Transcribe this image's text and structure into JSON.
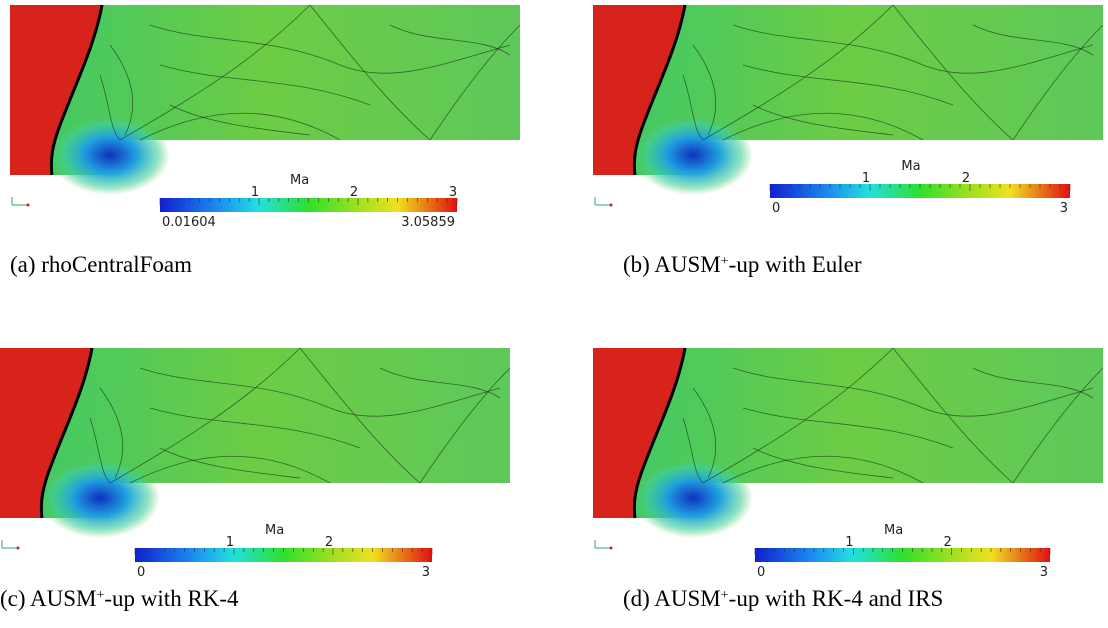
{
  "panels": [
    {
      "caption": {
        "prefix": "(a) rhoCentralFoam"
      },
      "colorbar": {
        "title": "Ma",
        "ticks": [
          "1",
          "2",
          "3"
        ],
        "min": "0.01604",
        "max": "3.05859"
      }
    },
    {
      "caption": {
        "prefix": "(b) AUSM",
        "sup": "+",
        "suffix": "-up with Euler"
      },
      "colorbar": {
        "title": "Ma",
        "ticks": [
          "1",
          "2"
        ],
        "min": "0",
        "max": "3"
      }
    },
    {
      "caption": {
        "prefix": "(c) AUSM",
        "sup": "+",
        "suffix": "-up with RK-4"
      },
      "colorbar": {
        "title": "Ma",
        "ticks": [
          "1",
          "2"
        ],
        "min": "0",
        "max": "3"
      }
    },
    {
      "caption": {
        "prefix": "(d) AUSM",
        "sup": "+",
        "suffix": "-up with RK-4 and IRS"
      },
      "colorbar": {
        "title": "Ma",
        "ticks": [
          "1",
          "2"
        ],
        "min": "0",
        "max": "3"
      }
    }
  ]
}
